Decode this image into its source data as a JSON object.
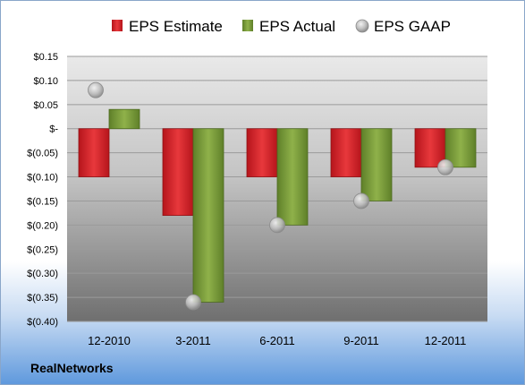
{
  "chart_data": {
    "type": "bar",
    "categories": [
      "12-2010",
      "3-2011",
      "6-2011",
      "9-2011",
      "12-2011"
    ],
    "series": [
      {
        "name": "EPS Estimate",
        "kind": "bar",
        "values": [
          -0.1,
          -0.18,
          -0.1,
          -0.1,
          -0.08
        ],
        "color": "#d8252b"
      },
      {
        "name": "EPS Actual",
        "kind": "bar",
        "values": [
          0.04,
          -0.36,
          -0.2,
          -0.15,
          -0.08
        ],
        "color": "#7c9e3a"
      },
      {
        "name": "EPS GAAP",
        "kind": "marker",
        "values": [
          0.08,
          -0.36,
          -0.2,
          -0.15,
          -0.08
        ],
        "color": "#b9b9b9"
      }
    ],
    "ylim": [
      -0.4,
      0.15
    ],
    "ytick_values": [
      0.15,
      0.1,
      0.05,
      0.0,
      -0.05,
      -0.1,
      -0.15,
      -0.2,
      -0.25,
      -0.3,
      -0.35,
      -0.4
    ],
    "ytick_labels": [
      "$0.15",
      "$0.10",
      "$0.05",
      "$-",
      "$(0.05)",
      "$(0.10)",
      "$(0.15)",
      "$(0.20)",
      "$(0.25)",
      "$(0.30)",
      "$(0.35)",
      "$(0.40)"
    ],
    "grid": true,
    "legend_position": "top"
  },
  "footer": {
    "company": "RealNetworks"
  }
}
